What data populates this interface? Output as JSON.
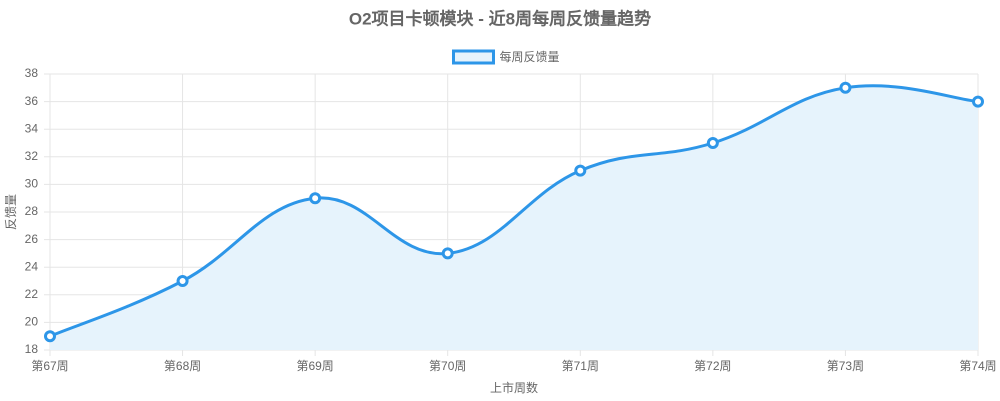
{
  "chart_data": {
    "type": "line",
    "title": "O2项目卡顿模块 - 近8周每周反馈量趋势",
    "x_label": "上市周数",
    "y_label": "反馈量",
    "categories": [
      "第67周",
      "第68周",
      "第69周",
      "第70周",
      "第71周",
      "第72周",
      "第73周",
      "第74周"
    ],
    "series": [
      {
        "name": "每周反馈量",
        "color": "#2d96e8",
        "fill": "#e6f3fc",
        "values": [
          19,
          23,
          29,
          25,
          31,
          33,
          37,
          36
        ]
      }
    ],
    "ylim": [
      18,
      38
    ],
    "yticks": [
      18,
      20,
      22,
      24,
      26,
      28,
      30,
      32,
      34,
      36,
      38
    ],
    "grid": true,
    "legend": "top"
  }
}
